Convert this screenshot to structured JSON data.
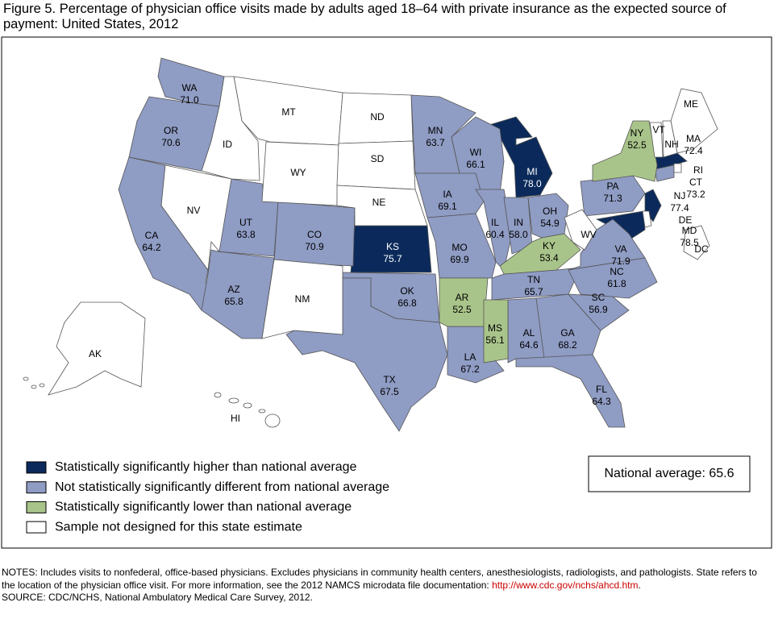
{
  "title": "Figure 5. Percentage of physician office visits made by adults aged 18–64 with private insurance as the expected source of payment: United States, 2012",
  "legend": [
    {
      "label": "Statistically significantly higher than national average",
      "color": "#0b2a5b",
      "states": [
        {
          "abbr": "MI",
          "value": 78.0,
          "label": "78.0"
        },
        {
          "abbr": "KS",
          "value": 75.7
        },
        {
          "abbr": "NJ",
          "value": 77.4
        },
        {
          "abbr": "MD",
          "value": 78.5
        },
        {
          "abbr": "MA",
          "value": 72.4
        }
      ]
    },
    {
      "label": "Not statistically significantly different from national average",
      "color": "#8f9cc4",
      "states": [
        {
          "abbr": "WA",
          "value": 71.0,
          "label": "71.0"
        },
        {
          "abbr": "OR",
          "value": 70.6
        },
        {
          "abbr": "CA",
          "value": 64.2
        },
        {
          "abbr": "UT",
          "value": 63.8
        },
        {
          "abbr": "CO",
          "value": 70.9
        },
        {
          "abbr": "AZ",
          "value": 65.8
        },
        {
          "abbr": "MN",
          "value": 63.7
        },
        {
          "abbr": "WI",
          "value": 66.1
        },
        {
          "abbr": "IA",
          "value": 69.1
        },
        {
          "abbr": "MO",
          "value": 69.9
        },
        {
          "abbr": "IL",
          "value": 60.4
        },
        {
          "abbr": "IN",
          "value": 58.0,
          "label": "58.0"
        },
        {
          "abbr": "OH",
          "value": 54.9
        },
        {
          "abbr": "OK",
          "value": 66.8
        },
        {
          "abbr": "TX",
          "value": 67.5
        },
        {
          "abbr": "LA",
          "value": 67.2
        },
        {
          "abbr": "AL",
          "value": 64.6
        },
        {
          "abbr": "GA",
          "value": 68.2
        },
        {
          "abbr": "FL",
          "value": 64.3
        },
        {
          "abbr": "TN",
          "value": 65.7
        },
        {
          "abbr": "VA",
          "value": 71.9
        },
        {
          "abbr": "NC",
          "value": 61.8
        },
        {
          "abbr": "SC",
          "value": 56.9
        },
        {
          "abbr": "PA",
          "value": 71.3
        },
        {
          "abbr": "CT",
          "value": 73.2
        }
      ]
    },
    {
      "label": "Statistically significantly lower than national average",
      "color": "#a9c48a",
      "states": [
        {
          "abbr": "NY",
          "value": 52.5
        },
        {
          "abbr": "KY",
          "value": 53.4
        },
        {
          "abbr": "AR",
          "value": 52.5
        },
        {
          "abbr": "MS",
          "value": 56.1
        }
      ]
    },
    {
      "label": "Sample not designed for this state estimate",
      "color": "#ffffff",
      "states": [
        {
          "abbr": "MT"
        },
        {
          "abbr": "ID"
        },
        {
          "abbr": "NV"
        },
        {
          "abbr": "WY"
        },
        {
          "abbr": "ND"
        },
        {
          "abbr": "SD"
        },
        {
          "abbr": "NE"
        },
        {
          "abbr": "NM"
        },
        {
          "abbr": "WV"
        },
        {
          "abbr": "ME"
        },
        {
          "abbr": "VT"
        },
        {
          "abbr": "NH"
        },
        {
          "abbr": "RI"
        },
        {
          "abbr": "DE"
        },
        {
          "abbr": "DC"
        },
        {
          "abbr": "AK"
        },
        {
          "abbr": "HI"
        }
      ]
    }
  ],
  "national_average": {
    "label": "National average:",
    "value": 65.6
  },
  "notes": {
    "text": "NOTES: Includes visits to nonfederal, office-based physicians. Excludes physicians in community health centers, anesthesiologists, radiologists, and pathologists. State refers to the location of the physician office visit. For more information, see the 2012 NAMCS microdata file documentation: ",
    "link": "http://www.cdc.gov/nchs/ahcd.htm",
    "end": "."
  },
  "source": "SOURCE: CDC/NCHS, National Ambulatory Medical Care Survey, 2012."
}
